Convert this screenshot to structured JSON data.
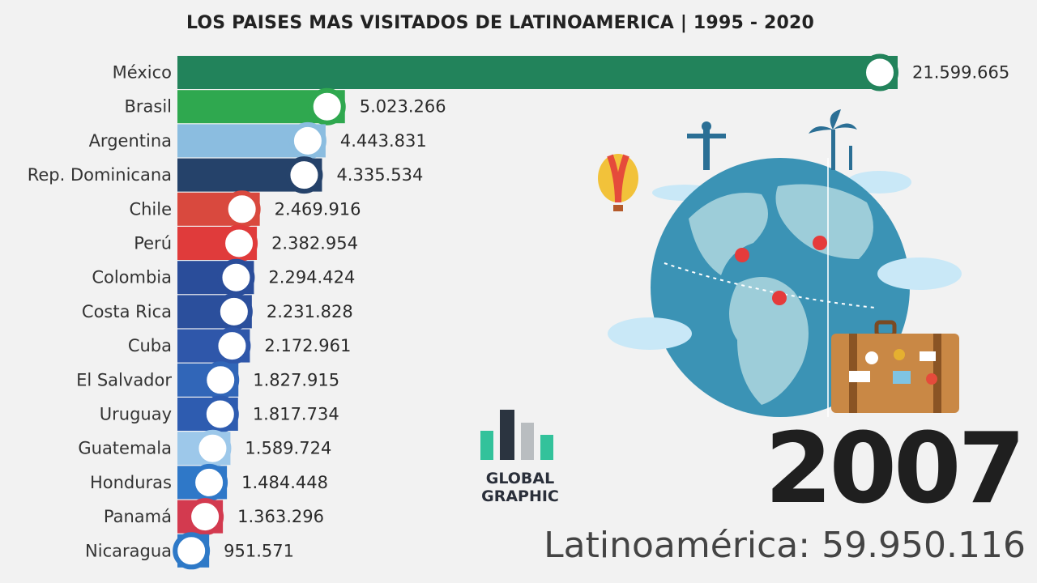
{
  "title": "LOS PAISES MAS VISITADOS DE LATINOAMERICA | 1995 - 2020",
  "year": "2007",
  "total_label": "Latinoamérica: 59.950.116",
  "logo": {
    "line1": "GLOBAL",
    "line2": "GRAPHIC"
  },
  "chart_data": {
    "type": "bar",
    "orientation": "horizontal",
    "title": "LOS PAISES MAS VISITADOS DE LATINOAMERICA | 1995 - 2020",
    "categories": [
      "México",
      "Brasil",
      "Argentina",
      "Rep. Dominicana",
      "Chile",
      "Perú",
      "Colombia",
      "Costa Rica",
      "Cuba",
      "El Salvador",
      "Uruguay",
      "Guatemala",
      "Honduras",
      "Panamá",
      "Nicaragua"
    ],
    "values": [
      21599665,
      5023266,
      4443831,
      4335534,
      2469916,
      2382954,
      2294424,
      2231828,
      2172961,
      1827915,
      1817734,
      1589724,
      1484448,
      1363296,
      951571
    ],
    "value_labels": [
      "21.599.665",
      "5.023.266",
      "4.443.831",
      "4.335.534",
      "2.469.916",
      "2.382.954",
      "2.294.424",
      "2.231.828",
      "2.172.961",
      "1.827.915",
      "1.817.734",
      "1.589.724",
      "1.484.448",
      "1.363.296",
      "951.571"
    ],
    "colors": [
      "#22835b",
      "#2fa84f",
      "#8bbde0",
      "#25426a",
      "#d9493e",
      "#e03b3b",
      "#2a4d9a",
      "#2b4f9c",
      "#2f57aa",
      "#3166b8",
      "#2e5cb0",
      "#9dc8ea",
      "#2f78c8",
      "#d33a4f",
      "#2e79c7"
    ],
    "xlim": [
      0,
      21599665
    ],
    "grid": false,
    "legend": "none"
  }
}
